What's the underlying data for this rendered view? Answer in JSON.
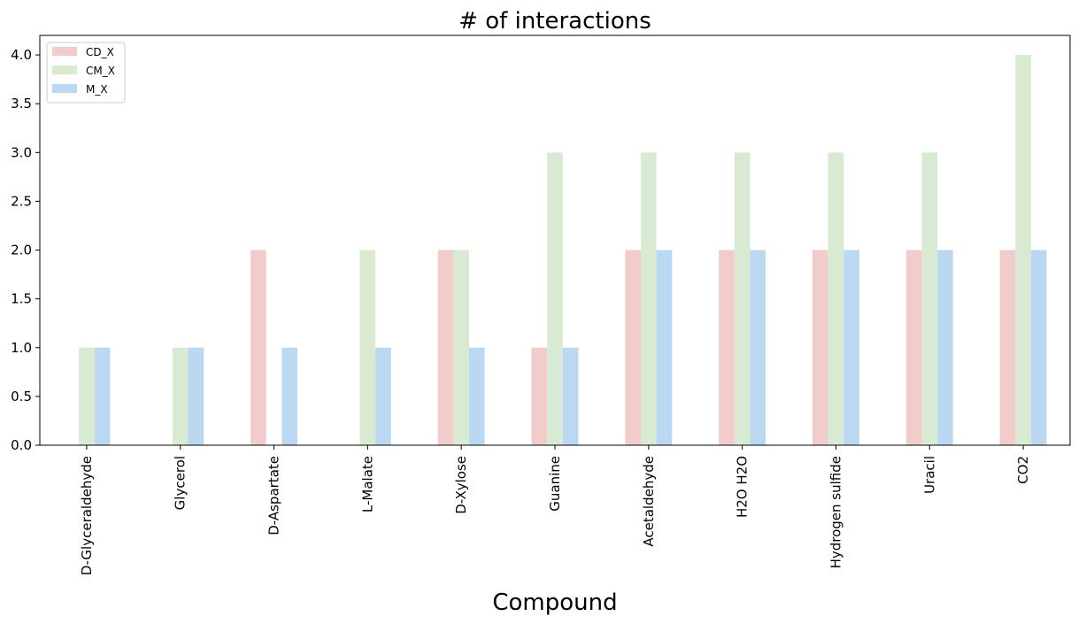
{
  "chart_data": {
    "type": "bar",
    "title": "# of interactions",
    "xlabel": "Compound",
    "ylabel": "",
    "ylim": [
      0,
      4.2
    ],
    "yticks": [
      "0.0",
      "0.5",
      "1.0",
      "1.5",
      "2.0",
      "2.5",
      "3.0",
      "3.5",
      "4.0"
    ],
    "categories": [
      "D-Glyceraldehyde",
      "Glycerol",
      "D-Aspartate",
      "L-Malate",
      "D-Xylose",
      "Guanine",
      "Acetaldehyde",
      "H2O H2O",
      "Hydrogen sulfide",
      "Uracil",
      "CO2"
    ],
    "series": [
      {
        "name": "CD_X",
        "color": "#f2cbcb",
        "values": [
          0,
          0,
          2,
          0,
          2,
          1,
          2,
          2,
          2,
          2,
          2
        ]
      },
      {
        "name": "CM_X",
        "color": "#d9ead3",
        "values": [
          1,
          1,
          0,
          2,
          2,
          3,
          3,
          3,
          3,
          3,
          4
        ]
      },
      {
        "name": "M_X",
        "color": "#bad8f2",
        "values": [
          1,
          1,
          1,
          1,
          1,
          1,
          2,
          2,
          2,
          2,
          2
        ]
      }
    ],
    "legend_position": "top-left",
    "grid": false
  }
}
